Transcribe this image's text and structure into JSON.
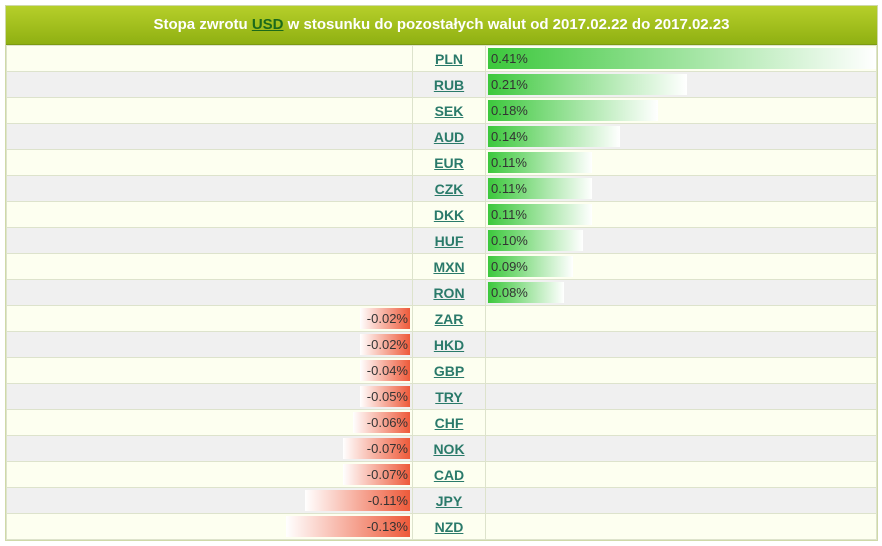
{
  "header": {
    "prefix": "Stopa zwrotu",
    "base_currency": "USD",
    "suffix": "w stosunku do pozostałych walut od 2017.02.22 do 2017.02.23"
  },
  "colors": {
    "positive": "#3cc83c",
    "negative": "#ee5a3a",
    "header": "#a4c21f"
  },
  "chart_data": {
    "type": "bar",
    "title": "Stopa zwrotu USD w stosunku do pozostałych walut od 2017.02.22 do 2017.02.23",
    "categories": [
      "PLN",
      "RUB",
      "SEK",
      "AUD",
      "EUR",
      "CZK",
      "DKK",
      "HUF",
      "MXN",
      "RON",
      "ZAR",
      "HKD",
      "GBP",
      "TRY",
      "CHF",
      "NOK",
      "CAD",
      "JPY",
      "NZD"
    ],
    "values": [
      0.41,
      0.21,
      0.18,
      0.14,
      0.11,
      0.11,
      0.11,
      0.1,
      0.09,
      0.08,
      -0.02,
      -0.02,
      -0.04,
      -0.05,
      -0.06,
      -0.07,
      -0.07,
      -0.11,
      -0.13
    ],
    "labels": [
      "0.41%",
      "0.21%",
      "0.18%",
      "0.14%",
      "0.11%",
      "0.11%",
      "0.11%",
      "0.10%",
      "0.09%",
      "0.08%",
      "-0.02%",
      "-0.02%",
      "-0.04%",
      "-0.05%",
      "-0.06%",
      "-0.07%",
      "-0.07%",
      "-0.11%",
      "-0.13%"
    ],
    "unit": "%"
  }
}
